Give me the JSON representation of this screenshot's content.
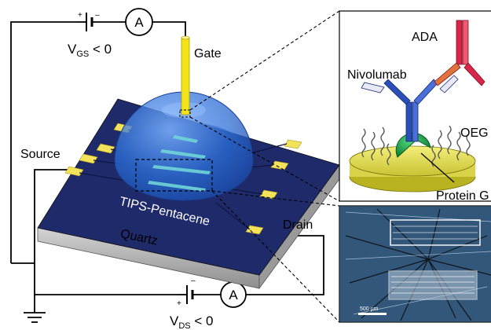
{
  "labels": {
    "vgs_main": "V",
    "vgs_sub": "GS",
    "vgs_rel": " < 0",
    "vds_main": "V",
    "vds_sub": "DS",
    "vds_rel": " < 0",
    "ammeter_top": "A",
    "ammeter_bottom": "A",
    "gate": "Gate",
    "source": "Source",
    "drain": "Drain",
    "semiconductor": "TIPS-Pentacene",
    "substrate": "Quartz",
    "ada": "ADA",
    "nivolumab": "Nivolumab",
    "oeg": "OEG",
    "protein_g": "Protein G",
    "scale_bar": "500 μm"
  },
  "colors": {
    "substrate_top": "#1f2a6b",
    "substrate_side": "#b9b9b9",
    "pad": "#f4e25a",
    "gate_rod": "#f2e416",
    "dome": "#3a7de0",
    "protein_g": "#1aa34a",
    "antibody_blue": "#2a4fb8",
    "antibody_red": "#d8264a",
    "micrograph_bg": "#1d3a5c"
  }
}
